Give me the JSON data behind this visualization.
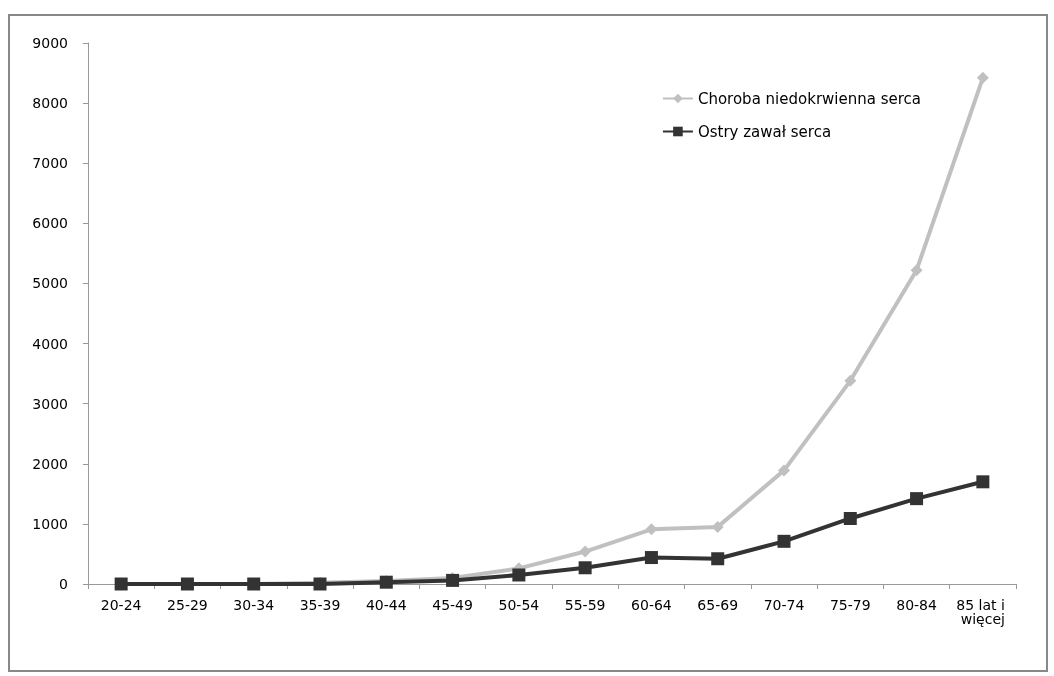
{
  "chart_data": {
    "type": "line",
    "categories": [
      "20-24",
      "25-29",
      "30-34",
      "35-39",
      "40-44",
      "45-49",
      "50-54",
      "55-59",
      "60-64",
      "65-69",
      "70-74",
      "75-79",
      "80-84",
      "85 lat i więcej"
    ],
    "series": [
      {
        "name": "Choroba niedokrwienna serca",
        "color": "#c0c0c0",
        "marker": "diamond",
        "values": [
          0,
          0,
          0,
          20,
          50,
          100,
          260,
          540,
          910,
          950,
          1890,
          3380,
          5220,
          8420
        ]
      },
      {
        "name": "Ostry zawał serca",
        "color": "#333333",
        "marker": "square",
        "values": [
          0,
          0,
          0,
          0,
          30,
          60,
          150,
          270,
          440,
          420,
          710,
          1090,
          1420,
          1700
        ]
      }
    ],
    "ylim": [
      0,
      9000
    ],
    "yticks": [
      0,
      1000,
      2000,
      3000,
      4000,
      5000,
      6000,
      7000,
      8000,
      9000
    ],
    "grid": false,
    "legend": "top right"
  }
}
